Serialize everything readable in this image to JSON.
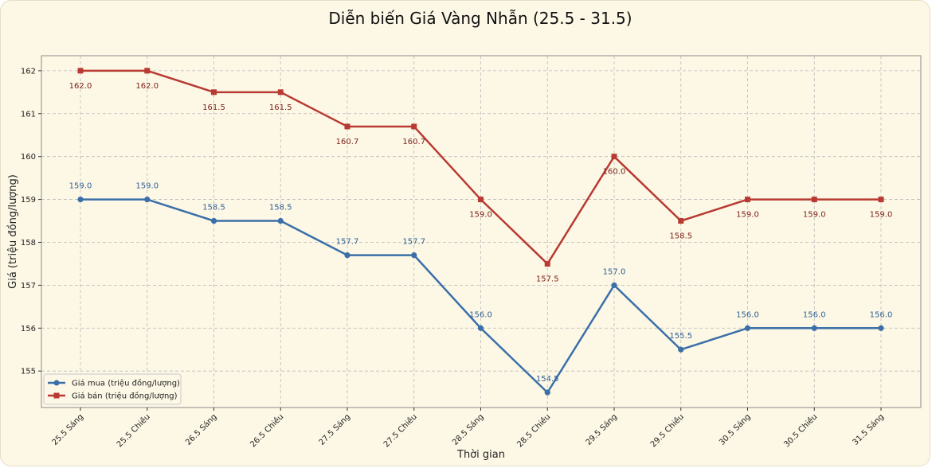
{
  "chart_data": {
    "type": "line",
    "title": "Diễn biến Giá Vàng Nhẫn (25.5 - 31.5)",
    "xlabel": "Thời gian",
    "ylabel": "Giá (triệu đồng/lượng)",
    "categories": [
      "25.5 Sáng",
      "25.5 Chiều",
      "26.5 Sáng",
      "26.5 Chiều",
      "27.5 Sáng",
      "27.5 Chiều",
      "28.5 Sáng",
      "28.5 Chiều",
      "29.5 Sáng",
      "29.5 Chiều",
      "30.5 Sáng",
      "30.5 Chiều",
      "31.5 Sáng"
    ],
    "yticks": [
      155,
      156,
      157,
      158,
      159,
      160,
      161,
      162
    ],
    "ylim": [
      154.15,
      162.35
    ],
    "grid": true,
    "legend_position": "lower-left",
    "series": [
      {
        "name": "Giá mua (triệu đồng/lượng)",
        "color": "#3a6fa8",
        "marker": "circle",
        "values": [
          159.0,
          159.0,
          158.5,
          158.5,
          157.7,
          157.7,
          156.0,
          154.5,
          157.0,
          155.5,
          156.0,
          156.0,
          156.0
        ],
        "labels": [
          "159.0",
          "159.0",
          "158.5",
          "158.5",
          "157.7",
          "157.7",
          "156.0",
          "154.5",
          "157.0",
          "155.5",
          "156.0",
          "156.0",
          "156.0"
        ],
        "label_position": "above"
      },
      {
        "name": "Giá bán (triệu đồng/lượng)",
        "color": "#b83a32",
        "marker": "square",
        "values": [
          162.0,
          162.0,
          161.5,
          161.5,
          160.7,
          160.7,
          159.0,
          157.5,
          160.0,
          158.5,
          159.0,
          159.0,
          159.0
        ],
        "labels": [
          "162.0",
          "162.0",
          "161.5",
          "161.5",
          "160.7",
          "160.7",
          "159.0",
          "157.5",
          "160.0",
          "158.5",
          "159.0",
          "159.0",
          "159.0"
        ],
        "label_position": "below"
      }
    ]
  }
}
